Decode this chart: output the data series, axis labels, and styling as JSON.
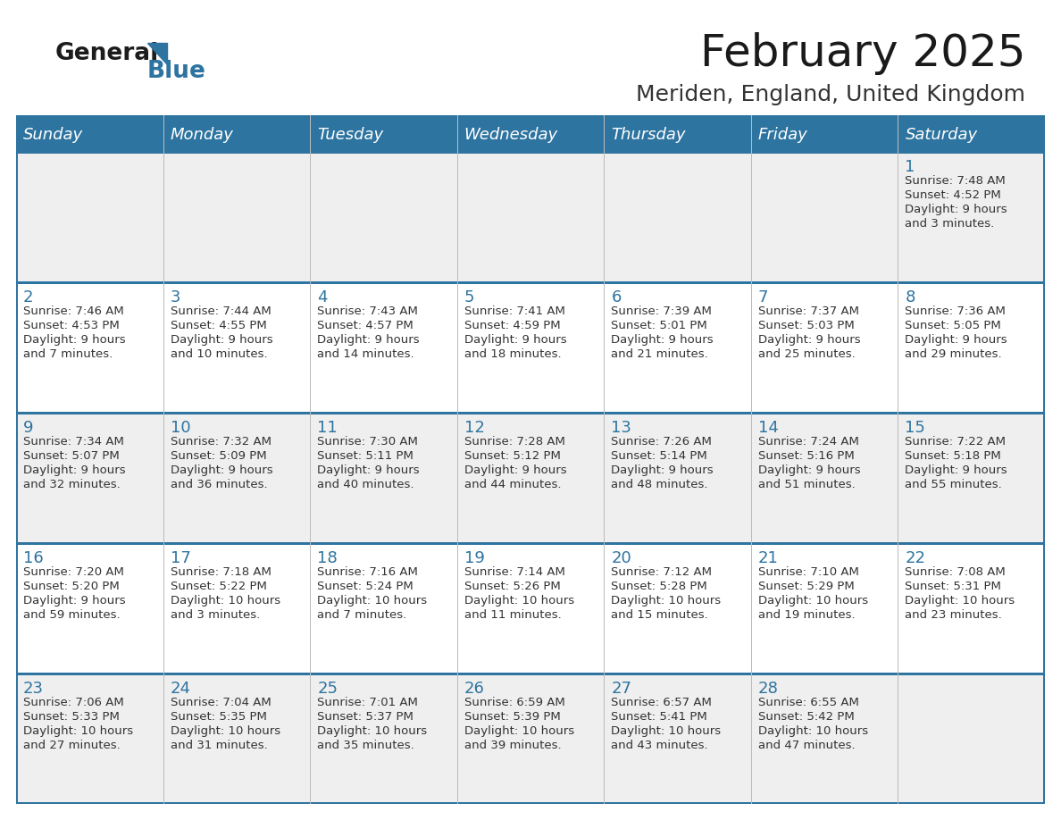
{
  "title": "February 2025",
  "subtitle": "Meriden, England, United Kingdom",
  "header_bg": "#2E74A0",
  "header_text_color": "#FFFFFF",
  "row_bg_odd": "#EFEFEF",
  "row_bg_even": "#FFFFFF",
  "border_color": "#2E74A0",
  "days_of_week": [
    "Sunday",
    "Monday",
    "Tuesday",
    "Wednesday",
    "Thursday",
    "Friday",
    "Saturday"
  ],
  "title_color": "#1a1a1a",
  "subtitle_color": "#333333",
  "cell_text_color": "#333333",
  "day_num_color": "#2E74A0",
  "calendar_data": [
    [
      {
        "day": 0,
        "info": ""
      },
      {
        "day": 0,
        "info": ""
      },
      {
        "day": 0,
        "info": ""
      },
      {
        "day": 0,
        "info": ""
      },
      {
        "day": 0,
        "info": ""
      },
      {
        "day": 0,
        "info": ""
      },
      {
        "day": 1,
        "info": "Sunrise: 7:48 AM\nSunset: 4:52 PM\nDaylight: 9 hours\nand 3 minutes."
      }
    ],
    [
      {
        "day": 2,
        "info": "Sunrise: 7:46 AM\nSunset: 4:53 PM\nDaylight: 9 hours\nand 7 minutes."
      },
      {
        "day": 3,
        "info": "Sunrise: 7:44 AM\nSunset: 4:55 PM\nDaylight: 9 hours\nand 10 minutes."
      },
      {
        "day": 4,
        "info": "Sunrise: 7:43 AM\nSunset: 4:57 PM\nDaylight: 9 hours\nand 14 minutes."
      },
      {
        "day": 5,
        "info": "Sunrise: 7:41 AM\nSunset: 4:59 PM\nDaylight: 9 hours\nand 18 minutes."
      },
      {
        "day": 6,
        "info": "Sunrise: 7:39 AM\nSunset: 5:01 PM\nDaylight: 9 hours\nand 21 minutes."
      },
      {
        "day": 7,
        "info": "Sunrise: 7:37 AM\nSunset: 5:03 PM\nDaylight: 9 hours\nand 25 minutes."
      },
      {
        "day": 8,
        "info": "Sunrise: 7:36 AM\nSunset: 5:05 PM\nDaylight: 9 hours\nand 29 minutes."
      }
    ],
    [
      {
        "day": 9,
        "info": "Sunrise: 7:34 AM\nSunset: 5:07 PM\nDaylight: 9 hours\nand 32 minutes."
      },
      {
        "day": 10,
        "info": "Sunrise: 7:32 AM\nSunset: 5:09 PM\nDaylight: 9 hours\nand 36 minutes."
      },
      {
        "day": 11,
        "info": "Sunrise: 7:30 AM\nSunset: 5:11 PM\nDaylight: 9 hours\nand 40 minutes."
      },
      {
        "day": 12,
        "info": "Sunrise: 7:28 AM\nSunset: 5:12 PM\nDaylight: 9 hours\nand 44 minutes."
      },
      {
        "day": 13,
        "info": "Sunrise: 7:26 AM\nSunset: 5:14 PM\nDaylight: 9 hours\nand 48 minutes."
      },
      {
        "day": 14,
        "info": "Sunrise: 7:24 AM\nSunset: 5:16 PM\nDaylight: 9 hours\nand 51 minutes."
      },
      {
        "day": 15,
        "info": "Sunrise: 7:22 AM\nSunset: 5:18 PM\nDaylight: 9 hours\nand 55 minutes."
      }
    ],
    [
      {
        "day": 16,
        "info": "Sunrise: 7:20 AM\nSunset: 5:20 PM\nDaylight: 9 hours\nand 59 minutes."
      },
      {
        "day": 17,
        "info": "Sunrise: 7:18 AM\nSunset: 5:22 PM\nDaylight: 10 hours\nand 3 minutes."
      },
      {
        "day": 18,
        "info": "Sunrise: 7:16 AM\nSunset: 5:24 PM\nDaylight: 10 hours\nand 7 minutes."
      },
      {
        "day": 19,
        "info": "Sunrise: 7:14 AM\nSunset: 5:26 PM\nDaylight: 10 hours\nand 11 minutes."
      },
      {
        "day": 20,
        "info": "Sunrise: 7:12 AM\nSunset: 5:28 PM\nDaylight: 10 hours\nand 15 minutes."
      },
      {
        "day": 21,
        "info": "Sunrise: 7:10 AM\nSunset: 5:29 PM\nDaylight: 10 hours\nand 19 minutes."
      },
      {
        "day": 22,
        "info": "Sunrise: 7:08 AM\nSunset: 5:31 PM\nDaylight: 10 hours\nand 23 minutes."
      }
    ],
    [
      {
        "day": 23,
        "info": "Sunrise: 7:06 AM\nSunset: 5:33 PM\nDaylight: 10 hours\nand 27 minutes."
      },
      {
        "day": 24,
        "info": "Sunrise: 7:04 AM\nSunset: 5:35 PM\nDaylight: 10 hours\nand 31 minutes."
      },
      {
        "day": 25,
        "info": "Sunrise: 7:01 AM\nSunset: 5:37 PM\nDaylight: 10 hours\nand 35 minutes."
      },
      {
        "day": 26,
        "info": "Sunrise: 6:59 AM\nSunset: 5:39 PM\nDaylight: 10 hours\nand 39 minutes."
      },
      {
        "day": 27,
        "info": "Sunrise: 6:57 AM\nSunset: 5:41 PM\nDaylight: 10 hours\nand 43 minutes."
      },
      {
        "day": 28,
        "info": "Sunrise: 6:55 AM\nSunset: 5:42 PM\nDaylight: 10 hours\nand 47 minutes."
      },
      {
        "day": 0,
        "info": ""
      }
    ]
  ]
}
